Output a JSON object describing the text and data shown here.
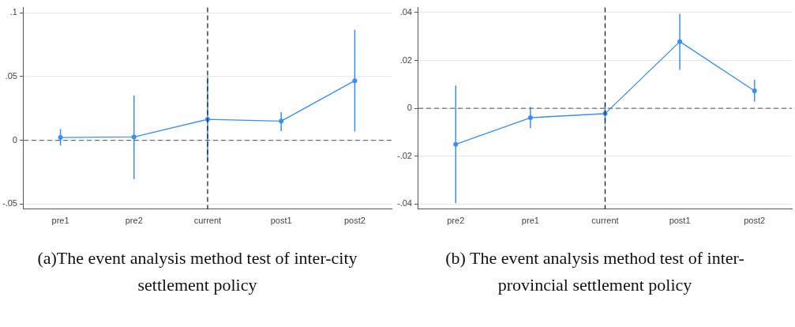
{
  "chart_data": [
    {
      "type": "line",
      "title": "(a)The event analysis method test of inter-city settlement policy",
      "categories": [
        "pre1",
        "pre2",
        "current",
        "post1",
        "post2"
      ],
      "series": [
        {
          "color": "#3a8ef6",
          "values": [
            0.0022,
            0.0026,
            0.0164,
            0.015,
            0.0467
          ],
          "errors": [
            [
              -0.0042,
              0.0088
            ],
            [
              -0.0305,
              0.035
            ],
            [
              -0.016,
              0.05
            ],
            [
              0.0072,
              0.022
            ],
            [
              0.0068,
              0.0866
            ]
          ]
        }
      ],
      "ylim": [
        -0.054,
        0.104
      ],
      "yticks": [
        {
          "value": -0.05,
          "label": "-.05"
        },
        {
          "value": 0,
          "label": "0"
        },
        {
          "value": 0.05,
          "label": ".05"
        },
        {
          "value": 0.1,
          "label": ".1"
        }
      ],
      "grid": "y",
      "legend": false,
      "marker": "circle",
      "ref_lines": [
        {
          "axis": "y",
          "value": 0,
          "color": "#707070",
          "line_style": "dashed"
        },
        {
          "axis": "x",
          "value": "current",
          "color": "#202020",
          "line_style": "dashed"
        }
      ]
    },
    {
      "type": "line",
      "title": "(b) The event analysis method test of inter-provincial settlement policy",
      "categories": [
        "pre2",
        "pre1",
        "current",
        "post1",
        "post2"
      ],
      "series": [
        {
          "color": "#3a8ef6",
          "values": [
            -0.015,
            -0.0039,
            -0.0022,
            0.0279,
            0.0073
          ],
          "errors": [
            [
              -0.0396,
              0.0095
            ],
            [
              -0.0083,
              0.0006
            ],
            [
              -0.0068,
              0.0022
            ],
            [
              0.0161,
              0.0395
            ],
            [
              0.0028,
              0.0119
            ]
          ]
        }
      ],
      "ylim": [
        -0.0421,
        0.0421
      ],
      "yticks": [
        {
          "value": -0.04,
          "label": "-.04"
        },
        {
          "value": -0.02,
          "label": "-.02"
        },
        {
          "value": 0,
          "label": "0"
        },
        {
          "value": 0.02,
          "label": ".02"
        },
        {
          "value": 0.04,
          "label": ".04"
        }
      ],
      "grid": "y",
      "legend": false,
      "marker": "circle",
      "ref_lines": [
        {
          "axis": "y",
          "value": 0,
          "color": "#707070",
          "line_style": "dashed"
        },
        {
          "axis": "x",
          "value": "current",
          "color": "#202020",
          "line_style": "dashed"
        }
      ]
    }
  ]
}
